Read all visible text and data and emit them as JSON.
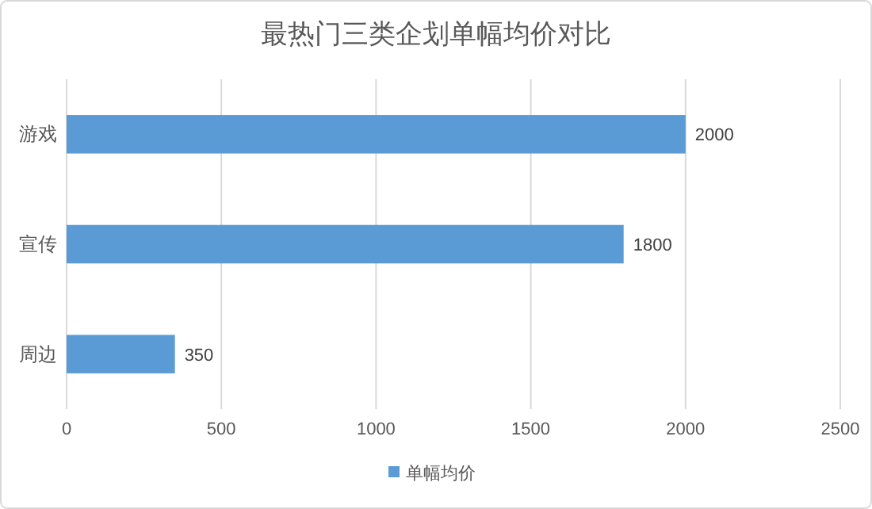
{
  "chart_data": {
    "type": "bar",
    "orientation": "horizontal",
    "title": "最热门三类企划单幅均价对比",
    "categories": [
      "游戏",
      "宣传",
      "周边"
    ],
    "series": [
      {
        "name": "单幅均价",
        "color": "#5b9bd5",
        "values": [
          2000,
          1800,
          350
        ]
      }
    ],
    "xlim": [
      0,
      2500
    ],
    "xticks": [
      0,
      500,
      1000,
      1500,
      2000,
      2500
    ],
    "grid": "x",
    "legend": "bottom",
    "data_labels": true
  }
}
